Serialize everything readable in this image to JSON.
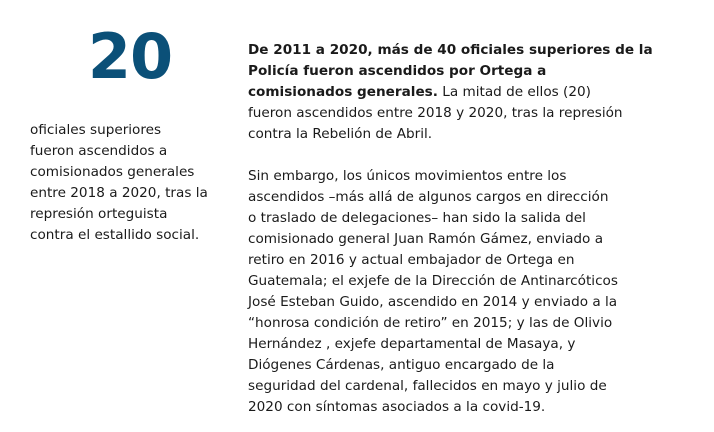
{
  "stat": {
    "number": "20",
    "color": "#0b5078",
    "caption_lines": [
      "oficiales superiores",
      "fueron ascendidos a",
      "comisionados generales",
      "entre 2018 a 2020, tras la",
      "represión orteguista",
      "contra el estallido social."
    ]
  },
  "article": {
    "p1_bold_lines": [
      "De 2011 a 2020, más de 40 oficiales superiores de la",
      "Policía fueron ascendidos por Ortega a",
      "comisionados generales."
    ],
    "p1_line3_rest": " La mitad de ellos (20)",
    "p1_lines": [
      "fueron ascendidos entre 2018 y 2020, tras la represión",
      "contra la Rebelión de Abril."
    ],
    "p2_lines": [
      "Sin embargo, los únicos movimientos entre los",
      "ascendidos –más allá de algunos cargos en dirección",
      "o traslado de delegaciones– han sido la salida del",
      "comisionado general Juan Ramón Gámez, enviado a",
      "retiro en 2016 y actual embajador de Ortega en",
      "Guatemala; el exjefe de la Dirección de Antinarcóticos",
      "José Esteban Guido, ascendido en 2014 y enviado a la",
      "“honrosa condición de retiro” en 2015; y las de Olivio",
      "Hernández , exjefe departamental de Masaya, y",
      "Diógenes Cárdenas, antiguo encargado de la",
      "seguridad del cardenal, fallecidos en mayo y julio de",
      "2020 con síntomas asociados a la covid-19."
    ]
  }
}
